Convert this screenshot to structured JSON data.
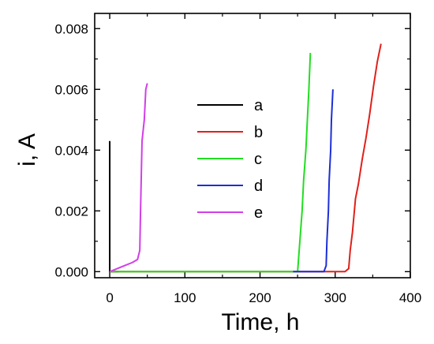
{
  "chart_data": {
    "type": "line",
    "title": "",
    "xlabel": "Time, h",
    "ylabel": "i, A",
    "xlim": [
      -20,
      400
    ],
    "ylim": [
      -0.0002,
      0.0085
    ],
    "x_ticks": [
      0,
      100,
      200,
      300,
      400
    ],
    "x_tick_labels": [
      "0",
      "100",
      "200",
      "300",
      "400"
    ],
    "y_ticks": [
      0.0,
      0.002,
      0.004,
      0.006,
      0.008
    ],
    "y_tick_labels": [
      "0.000",
      "0.002",
      "0.004",
      "0.006",
      "0.008"
    ],
    "grid": false,
    "legend_position": "center",
    "series": [
      {
        "name": "a",
        "color": "#000000",
        "points": [
          [
            0,
            0.0043
          ],
          [
            0,
            0.0
          ],
          [
            5,
            0.0
          ],
          [
            12,
            0.0
          ]
        ]
      },
      {
        "name": "b",
        "color": "#e0201b",
        "points": [
          [
            0,
            0.0
          ],
          [
            250,
            0.0
          ],
          [
            300,
            0.0
          ],
          [
            313,
            0.0
          ],
          [
            318,
            0.0001
          ],
          [
            320,
            0.0007
          ],
          [
            323,
            0.0013
          ],
          [
            327,
            0.0024
          ],
          [
            331,
            0.0029
          ],
          [
            336,
            0.0037
          ],
          [
            341,
            0.0044
          ],
          [
            346,
            0.0052
          ],
          [
            351,
            0.0061
          ],
          [
            356,
            0.0069
          ],
          [
            361,
            0.0075
          ]
        ]
      },
      {
        "name": "c",
        "color": "#22dd22",
        "points": [
          [
            0,
            0.0
          ],
          [
            100,
            0.0
          ],
          [
            200,
            0.0
          ],
          [
            250,
            0.0
          ],
          [
            253,
            0.001
          ],
          [
            256,
            0.002
          ],
          [
            258,
            0.003
          ],
          [
            261,
            0.004
          ],
          [
            263,
            0.005
          ],
          [
            265,
            0.006
          ],
          [
            267,
            0.0072
          ]
        ]
      },
      {
        "name": "d",
        "color": "#1c2fd6",
        "points": [
          [
            244,
            0.0
          ],
          [
            285,
            0.0
          ],
          [
            288,
            0.0002
          ],
          [
            289,
            0.001
          ],
          [
            291,
            0.002
          ],
          [
            292,
            0.003
          ],
          [
            294,
            0.004
          ],
          [
            295,
            0.005
          ],
          [
            297,
            0.006
          ]
        ]
      },
      {
        "name": "e",
        "color": "#d23ee8",
        "points": [
          [
            0,
            0.0
          ],
          [
            10,
            0.0001
          ],
          [
            20,
            0.0002
          ],
          [
            30,
            0.0003
          ],
          [
            37,
            0.0004
          ],
          [
            40,
            0.0007
          ],
          [
            41,
            0.002
          ],
          [
            43,
            0.0043
          ],
          [
            46,
            0.005
          ],
          [
            48,
            0.006
          ],
          [
            50,
            0.0062
          ]
        ]
      }
    ]
  }
}
